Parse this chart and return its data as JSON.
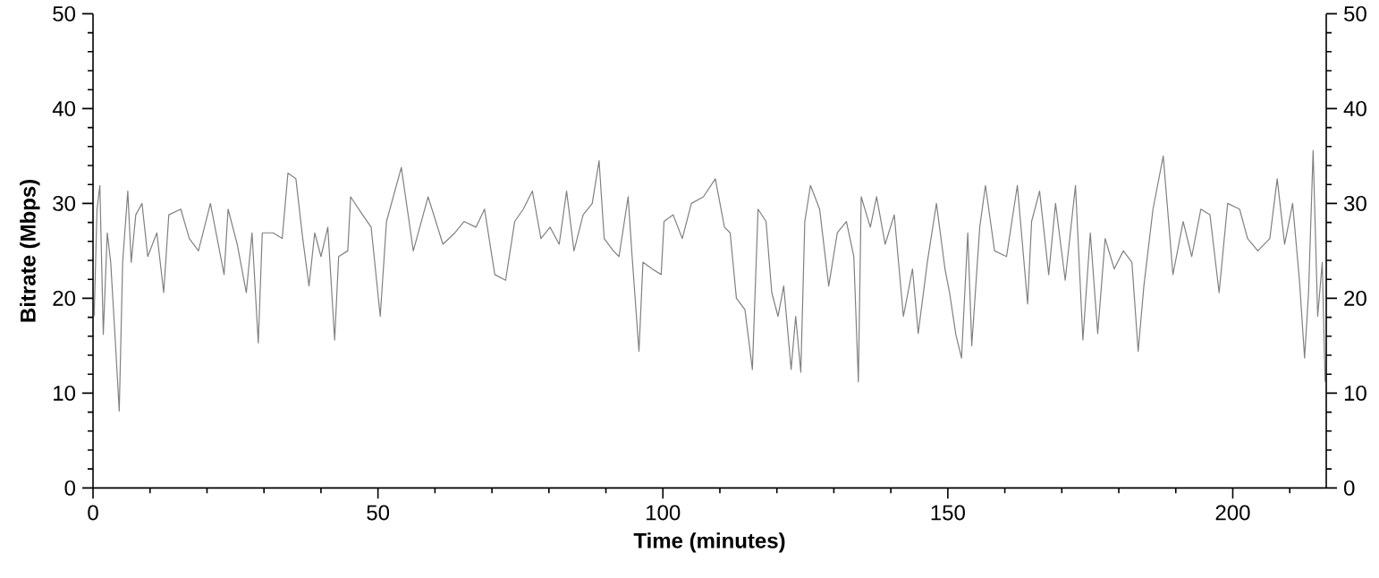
{
  "chart_data": {
    "type": "line",
    "xlabel": "Time (minutes)",
    "ylabel": "Bitrate (Mbps)",
    "xlim": [
      0,
      216.4
    ],
    "ylim": [
      0,
      50
    ],
    "y2lim": [
      0,
      50
    ],
    "xticks": [
      0,
      {
        "value": 10,
        "label": null
      },
      {
        "value": 20,
        "label": null
      },
      {
        "value": 30,
        "label": null
      },
      {
        "value": 40,
        "label": null
      },
      50,
      {
        "value": 60,
        "label": null
      },
      {
        "value": 70,
        "label": null
      },
      {
        "value": 80,
        "label": null
      },
      {
        "value": 90,
        "label": null
      },
      100,
      {
        "value": 110,
        "label": null
      },
      {
        "value": 120,
        "label": null
      },
      {
        "value": 130,
        "label": null
      },
      {
        "value": 140,
        "label": null
      },
      150,
      {
        "value": 160,
        "label": null
      },
      {
        "value": 170,
        "label": null
      },
      {
        "value": 180,
        "label": null
      },
      {
        "value": 190,
        "label": null
      },
      200,
      {
        "value": 210,
        "label": null
      }
    ],
    "yticks": [
      0,
      {
        "value": 2,
        "label": null
      },
      {
        "value": 4,
        "label": null
      },
      {
        "value": 6,
        "label": null
      },
      {
        "value": 8,
        "label": null
      },
      10,
      {
        "value": 12,
        "label": null
      },
      {
        "value": 14,
        "label": null
      },
      {
        "value": 16,
        "label": null
      },
      {
        "value": 18,
        "label": null
      },
      20,
      {
        "value": 22,
        "label": null
      },
      {
        "value": 24,
        "label": null
      },
      {
        "value": 26,
        "label": null
      },
      {
        "value": 28,
        "label": null
      },
      30,
      {
        "value": 32,
        "label": null
      },
      {
        "value": 34,
        "label": null
      },
      {
        "value": 36,
        "label": null
      },
      {
        "value": 38,
        "label": null
      },
      40,
      {
        "value": 42,
        "label": null
      },
      {
        "value": 44,
        "label": null
      },
      {
        "value": 46,
        "label": null
      },
      {
        "value": 48,
        "label": null
      },
      50
    ],
    "y2ticks": [
      0,
      {
        "value": 2,
        "label": null
      },
      {
        "value": 4,
        "label": null
      },
      {
        "value": 6,
        "label": null
      },
      {
        "value": 8,
        "label": null
      },
      10,
      {
        "value": 12,
        "label": null
      },
      {
        "value": 14,
        "label": null
      },
      {
        "value": 16,
        "label": null
      },
      {
        "value": 18,
        "label": null
      },
      20,
      {
        "value": 22,
        "label": null
      },
      {
        "value": 24,
        "label": null
      },
      {
        "value": 26,
        "label": null
      },
      {
        "value": 28,
        "label": null
      },
      30,
      {
        "value": 32,
        "label": null
      },
      {
        "value": 34,
        "label": null
      },
      {
        "value": 36,
        "label": null
      },
      {
        "value": 38,
        "label": null
      },
      40,
      {
        "value": 42,
        "label": null
      },
      {
        "value": 44,
        "label": null
      },
      {
        "value": 46,
        "label": null
      },
      {
        "value": 48,
        "label": null
      },
      50
    ],
    "grid": false,
    "marker": "none",
    "line_style": "solid",
    "series": [
      {
        "color": "#808080",
        "x": [
          0.2,
          0.7,
          1.2,
          1.8,
          2.5,
          3.1,
          3.9,
          4.6,
          5.2,
          6.1,
          6.7,
          7.5,
          8.6,
          9.6,
          11.2,
          12.4,
          13.3,
          15.4,
          16.9,
          18.5,
          20.6,
          23.0,
          23.7,
          25.3,
          26.9,
          27.9,
          29.0,
          29.7,
          31.6,
          33.2,
          34.2,
          35.6,
          36.8,
          37.9,
          38.9,
          40.0,
          41.2,
          42.4,
          43.1,
          44.7,
          45.2,
          47.3,
          48.8,
          50.4,
          51.5,
          54.1,
          56.2,
          58.8,
          61.4,
          63.5,
          65.1,
          67.2,
          68.7,
          70.5,
          72.4,
          74.0,
          75.5,
          77.1,
          78.6,
          80.2,
          81.8,
          83.1,
          84.4,
          86.0,
          87.6,
          88.8,
          89.7,
          91.3,
          92.3,
          93.9,
          94.6,
          95.8,
          96.5,
          98.1,
          99.7,
          100.2,
          101.8,
          103.4,
          105.0,
          107.1,
          109.2,
          110.8,
          111.8,
          112.9,
          114.4,
          115.7,
          116.7,
          118.1,
          119.1,
          120.2,
          121.2,
          122.5,
          123.3,
          124.2,
          124.9,
          125.9,
          127.5,
          129.1,
          130.6,
          132.2,
          133.5,
          134.3,
          134.8,
          136.4,
          137.5,
          139.0,
          140.6,
          142.2,
          143.8,
          144.8,
          146.4,
          148.0,
          149.5,
          150.3,
          151.4,
          152.4,
          153.5,
          154.2,
          155.6,
          156.6,
          158.2,
          160.3,
          162.2,
          164.0,
          164.7,
          166.1,
          167.7,
          168.9,
          170.6,
          172.4,
          173.7,
          175.0,
          176.3,
          177.6,
          179.2,
          180.8,
          182.3,
          183.4,
          184.4,
          186.0,
          187.8,
          189.5,
          191.3,
          192.8,
          194.4,
          196.0,
          197.6,
          199.1,
          201.2,
          202.6,
          204.4,
          206.5,
          207.8,
          209.1,
          210.5,
          211.7,
          212.6,
          213.3,
          214.1,
          214.9,
          215.7,
          216.2
        ],
        "values": [
          18.1,
          29.4,
          31.9,
          16.2,
          26.9,
          23.8,
          15.6,
          8.1,
          23.8,
          31.3,
          23.8,
          28.8,
          30.0,
          24.4,
          26.9,
          20.6,
          28.8,
          29.4,
          26.3,
          25.0,
          30.0,
          22.5,
          29.4,
          25.7,
          20.6,
          26.9,
          15.3,
          26.9,
          26.9,
          26.3,
          33.2,
          32.6,
          26.3,
          21.3,
          26.9,
          24.4,
          27.5,
          15.6,
          24.4,
          25.0,
          30.7,
          28.8,
          27.5,
          18.1,
          28.1,
          33.8,
          25.0,
          30.7,
          25.7,
          26.9,
          28.1,
          27.5,
          29.4,
          22.5,
          21.9,
          28.1,
          29.4,
          31.3,
          26.3,
          27.5,
          25.7,
          31.3,
          25.0,
          28.8,
          30.0,
          34.5,
          26.3,
          25.0,
          24.4,
          30.7,
          24.4,
          14.4,
          23.8,
          23.1,
          22.5,
          28.1,
          28.8,
          26.3,
          30.0,
          30.7,
          32.6,
          27.5,
          26.9,
          20.0,
          18.8,
          12.5,
          29.4,
          28.1,
          20.6,
          18.1,
          21.3,
          12.5,
          18.1,
          12.2,
          28.1,
          31.9,
          29.4,
          21.3,
          26.9,
          28.1,
          24.4,
          11.2,
          30.7,
          27.5,
          30.7,
          25.7,
          28.8,
          18.1,
          23.1,
          16.3,
          23.8,
          30.0,
          23.1,
          20.6,
          16.2,
          13.7,
          26.9,
          15.0,
          27.5,
          31.9,
          25.0,
          24.4,
          31.9,
          19.4,
          28.1,
          31.3,
          22.5,
          30.0,
          21.9,
          31.9,
          15.6,
          26.9,
          16.3,
          26.3,
          23.1,
          25.0,
          23.8,
          14.4,
          21.3,
          29.4,
          35.0,
          22.5,
          28.1,
          24.4,
          29.4,
          28.8,
          20.6,
          30.0,
          29.4,
          26.3,
          25.0,
          26.3,
          32.6,
          25.7,
          30.0,
          21.9,
          13.7,
          20.6,
          35.6,
          18.1,
          23.8,
          11.2
        ]
      }
    ]
  }
}
